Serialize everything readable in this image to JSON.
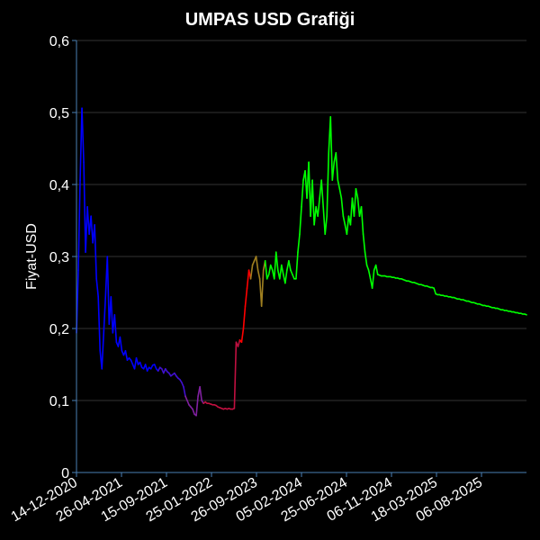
{
  "chart_data": {
    "type": "line",
    "title": "UMPAS USD Grafiği",
    "xlabel": "",
    "ylabel": "Fiyat-USD",
    "ylim": [
      0,
      0.6
    ],
    "yticks": [
      0,
      0.1,
      0.2,
      0.3,
      0.4,
      0.5,
      0.6
    ],
    "ytick_labels": [
      "0",
      "0,1",
      "0,2",
      "0,3",
      "0,4",
      "0,5",
      "0,6"
    ],
    "xtick_labels": [
      "14-12-2020",
      "26-04-2021",
      "15-09-2021",
      "25-01-2022",
      "26-09-2023",
      "05-02-2024",
      "25-06-2024",
      "06-11-2024",
      "18-03-2025",
      "06-08-2025"
    ],
    "grid": true,
    "colors": {
      "background": "#000000",
      "grid": "#333333",
      "axis": "#4a7fb5",
      "text": "#ffffff"
    },
    "color_segments": [
      {
        "from": 0,
        "to": 45,
        "color": "#0000ff"
      },
      {
        "from": 45,
        "to": 60,
        "color": "#4010d0"
      },
      {
        "from": 60,
        "to": 70,
        "color": "#8020a0"
      },
      {
        "from": 70,
        "to": 90,
        "color": "#c01040"
      },
      {
        "from": 90,
        "to": 96,
        "color": "#ff0000"
      },
      {
        "from": 96,
        "to": 104,
        "color": "#a08020"
      },
      {
        "from": 104,
        "to": 1000,
        "color": "#00ff00"
      }
    ],
    "values": [
      0.194,
      0.281,
      0.406,
      0.506,
      0.431,
      0.306,
      0.369,
      0.331,
      0.356,
      0.319,
      0.344,
      0.269,
      0.244,
      0.169,
      0.144,
      0.194,
      0.244,
      0.3,
      0.206,
      0.244,
      0.194,
      0.219,
      0.181,
      0.175,
      0.188,
      0.169,
      0.163,
      0.169,
      0.156,
      0.159,
      0.156,
      0.15,
      0.144,
      0.159,
      0.15,
      0.153,
      0.146,
      0.144,
      0.15,
      0.141,
      0.146,
      0.144,
      0.149,
      0.15,
      0.144,
      0.141,
      0.146,
      0.144,
      0.138,
      0.144,
      0.14,
      0.138,
      0.134,
      0.136,
      0.138,
      0.134,
      0.131,
      0.129,
      0.125,
      0.119,
      0.106,
      0.1,
      0.094,
      0.091,
      0.088,
      0.081,
      0.079,
      0.106,
      0.119,
      0.1,
      0.096,
      0.098,
      0.096,
      0.096,
      0.095,
      0.094,
      0.094,
      0.093,
      0.091,
      0.09,
      0.089,
      0.088,
      0.089,
      0.088,
      0.089,
      0.088,
      0.088,
      0.089,
      0.181,
      0.175,
      0.184,
      0.181,
      0.2,
      0.231,
      0.256,
      0.281,
      0.269,
      0.288,
      0.294,
      0.3,
      0.281,
      0.269,
      0.231,
      0.281,
      0.294,
      0.269,
      0.275,
      0.288,
      0.281,
      0.269,
      0.306,
      0.281,
      0.269,
      0.288,
      0.275,
      0.263,
      0.281,
      0.294,
      0.281,
      0.275,
      0.269,
      0.269,
      0.306,
      0.331,
      0.369,
      0.406,
      0.419,
      0.381,
      0.431,
      0.356,
      0.406,
      0.344,
      0.369,
      0.356,
      0.381,
      0.406,
      0.369,
      0.331,
      0.356,
      0.444,
      0.494,
      0.406,
      0.431,
      0.444,
      0.406,
      0.394,
      0.381,
      0.356,
      0.344,
      0.331,
      0.356,
      0.344,
      0.381,
      0.356,
      0.394,
      0.381,
      0.356,
      0.369,
      0.331,
      0.306,
      0.288,
      0.281,
      0.269,
      0.256,
      0.281,
      0.288,
      0.275,
      0.274,
      0.273,
      0.273,
      0.273,
      0.272,
      0.272,
      0.272,
      0.271,
      0.271,
      0.27,
      0.27,
      0.269,
      0.269,
      0.268,
      0.267,
      0.266,
      0.266,
      0.265,
      0.264,
      0.264,
      0.263,
      0.262,
      0.261,
      0.261,
      0.26,
      0.259,
      0.259,
      0.258,
      0.257,
      0.257,
      0.256,
      0.248,
      0.247,
      0.247,
      0.246,
      0.246,
      0.245,
      0.245,
      0.244,
      0.244,
      0.243,
      0.243,
      0.242,
      0.241,
      0.241,
      0.24,
      0.24,
      0.239,
      0.238,
      0.238,
      0.237,
      0.236,
      0.236,
      0.235,
      0.234,
      0.234,
      0.233,
      0.232,
      0.232,
      0.231,
      0.231,
      0.23,
      0.229,
      0.229,
      0.228,
      0.228,
      0.227,
      0.226,
      0.226,
      0.225,
      0.225,
      0.224,
      0.224,
      0.223,
      0.223,
      0.222,
      0.222,
      0.221,
      0.221,
      0.22,
      0.22,
      0.219
    ]
  }
}
